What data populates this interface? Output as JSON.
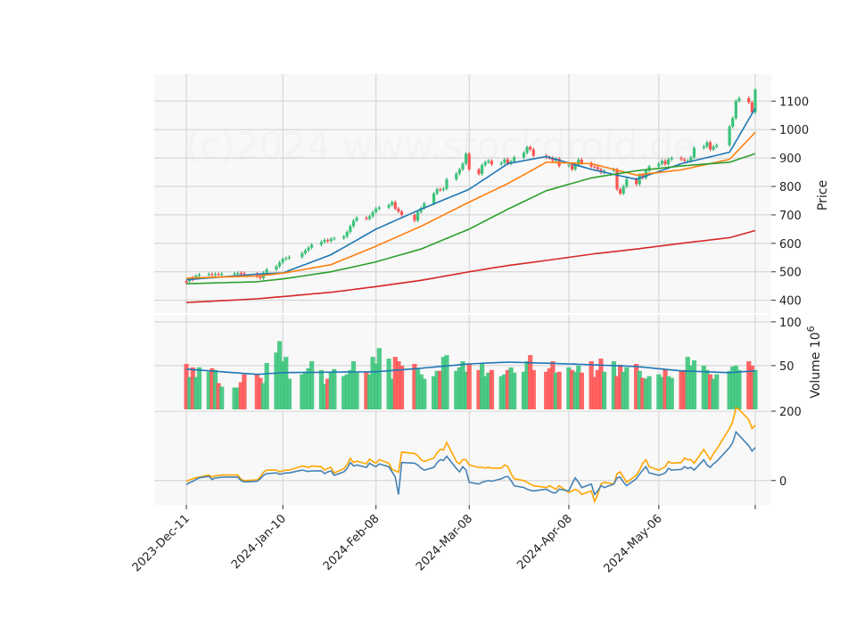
{
  "watermark": "(c)2024 www.stockdroid.de",
  "chart_data": [
    {
      "panel": "price",
      "type": "candlestick",
      "ylabel": "Price",
      "ylim": [
        355,
        1195
      ],
      "yticks": [
        400,
        500,
        600,
        700,
        800,
        900,
        1000,
        1100
      ],
      "grid": true,
      "x_dates": [
        "2023-12-11",
        "2023-12-12",
        "2023-12-13",
        "2023-12-14",
        "2023-12-15",
        "2023-12-18",
        "2023-12-19",
        "2023-12-20",
        "2023-12-21",
        "2023-12-22",
        "2023-12-26",
        "2023-12-27",
        "2023-12-28",
        "2023-12-29",
        "2024-01-02",
        "2024-01-03",
        "2024-01-04",
        "2024-01-05",
        "2024-01-08",
        "2024-01-09",
        "2024-01-10",
        "2024-01-11",
        "2024-01-12",
        "2024-01-16",
        "2024-01-17",
        "2024-01-18",
        "2024-01-19",
        "2024-01-22",
        "2024-01-23",
        "2024-01-24",
        "2024-01-25",
        "2024-01-26",
        "2024-01-29",
        "2024-01-30",
        "2024-01-31",
        "2024-02-01",
        "2024-02-02",
        "2024-02-05",
        "2024-02-06",
        "2024-02-07",
        "2024-02-08",
        "2024-02-09",
        "2024-02-12",
        "2024-02-13",
        "2024-02-14",
        "2024-02-15",
        "2024-02-16",
        "2024-02-20",
        "2024-02-21",
        "2024-02-22",
        "2024-02-23",
        "2024-02-26",
        "2024-02-27",
        "2024-02-28",
        "2024-02-29",
        "2024-03-01",
        "2024-03-04",
        "2024-03-05",
        "2024-03-06",
        "2024-03-07",
        "2024-03-08",
        "2024-03-11",
        "2024-03-12",
        "2024-03-13",
        "2024-03-14",
        "2024-03-15",
        "2024-03-18",
        "2024-03-19",
        "2024-03-20",
        "2024-03-21",
        "2024-03-22",
        "2024-03-25",
        "2024-03-26",
        "2024-03-27",
        "2024-03-28",
        "2024-04-01",
        "2024-04-02",
        "2024-04-03",
        "2024-04-04",
        "2024-04-05",
        "2024-04-08",
        "2024-04-09",
        "2024-04-10",
        "2024-04-11",
        "2024-04-12",
        "2024-04-15",
        "2024-04-16",
        "2024-04-17",
        "2024-04-18",
        "2024-04-19",
        "2024-04-22",
        "2024-04-23",
        "2024-04-24",
        "2024-04-25",
        "2024-04-26",
        "2024-04-29",
        "2024-04-30",
        "2024-05-01",
        "2024-05-02",
        "2024-05-03",
        "2024-05-06",
        "2024-05-07",
        "2024-05-08",
        "2024-05-09",
        "2024-05-10",
        "2024-05-13",
        "2024-05-14",
        "2024-05-15",
        "2024-05-16",
        "2024-05-17",
        "2024-05-20",
        "2024-05-21",
        "2024-05-22",
        "2024-05-23",
        "2024-05-24",
        "2024-05-28",
        "2024-05-29",
        "2024-05-30",
        "2024-05-31",
        "2024-06-03",
        "2024-06-04",
        "2024-06-05"
      ],
      "x_ticks": [
        "2023-Dec-11",
        "2024-Jan-10",
        "2024-Feb-08",
        "2024-Mar-08",
        "2024-Apr-08",
        "2024-May-06"
      ],
      "x_tick_dates": [
        "2023-12-11",
        "2024-01-10",
        "2024-02-08",
        "2024-03-08",
        "2024-04-08",
        "2024-05-06"
      ],
      "x_extra_tick_date": "2024-06-05",
      "x_range": [
        "2023-12-01",
        "2024-06-10"
      ],
      "close": [
        467,
        472,
        480,
        486,
        490,
        492,
        488,
        492,
        491,
        493,
        494,
        496,
        495,
        493,
        484,
        478,
        497,
        508,
        519,
        533,
        545,
        548,
        552,
        565,
        575,
        585,
        595,
        605,
        612,
        608,
        616,
        618,
        624,
        640,
        660,
        680,
        690,
        686,
        695,
        710,
        722,
        726,
        735,
        745,
        722,
        712,
        700,
        680,
        710,
        724,
        740,
        775,
        790,
        788,
        792,
        825,
        845,
        860,
        880,
        915,
        860,
        844,
        875,
        885,
        890,
        878,
        883,
        895,
        880,
        888,
        902,
        918,
        938,
        930,
        908,
        902,
        900,
        890,
        897,
        872,
        876,
        860,
        875,
        894,
        882,
        870,
        868,
        860,
        849,
        855,
        860,
        790,
        775,
        800,
        825,
        808,
        840,
        830,
        856,
        870,
        880,
        890,
        878,
        895,
        900,
        895,
        890,
        890,
        902,
        935,
        940,
        955,
        930,
        940,
        945,
        1010,
        1040,
        1100,
        1110,
        1095,
        1060,
        1140
      ],
      "up": [
        false,
        true,
        false,
        true,
        true,
        true,
        false,
        true,
        false,
        true,
        true,
        true,
        false,
        false,
        false,
        false,
        true,
        true,
        true,
        true,
        true,
        true,
        true,
        true,
        true,
        true,
        true,
        true,
        true,
        false,
        true,
        true,
        true,
        true,
        true,
        true,
        true,
        false,
        true,
        true,
        true,
        true,
        true,
        true,
        false,
        false,
        false,
        false,
        true,
        true,
        true,
        true,
        true,
        false,
        true,
        true,
        true,
        true,
        true,
        true,
        false,
        false,
        true,
        true,
        true,
        false,
        true,
        true,
        false,
        true,
        true,
        true,
        true,
        false,
        false,
        false,
        false,
        false,
        true,
        false,
        true,
        false,
        true,
        true,
        false,
        false,
        false,
        false,
        false,
        true,
        true,
        false,
        false,
        true,
        true,
        false,
        true,
        false,
        true,
        true,
        true,
        true,
        false,
        true,
        true,
        false,
        false,
        true,
        true,
        true,
        true,
        true,
        false,
        true,
        true,
        true,
        true,
        true,
        true,
        false,
        false,
        true
      ],
      "moving_averages": [
        {
          "color": "#1f77b4",
          "anchor_dates": [
            "2023-12-11",
            "2024-01-02",
            "2024-01-10",
            "2024-01-25",
            "2024-02-08",
            "2024-02-22",
            "2024-03-08",
            "2024-03-20",
            "2024-04-01",
            "2024-04-15",
            "2024-04-29",
            "2024-05-13",
            "2024-05-28",
            "2024-06-05"
          ],
          "values": [
            472,
            492,
            496,
            560,
            650,
            720,
            790,
            880,
            905,
            860,
            825,
            880,
            920,
            1075
          ]
        },
        {
          "color": "#ff7f0e",
          "anchor_dates": [
            "2023-12-11",
            "2024-01-02",
            "2024-01-10",
            "2024-01-25",
            "2024-02-08",
            "2024-02-22",
            "2024-03-08",
            "2024-03-20",
            "2024-04-01",
            "2024-04-15",
            "2024-04-29",
            "2024-05-13",
            "2024-05-28",
            "2024-06-05"
          ],
          "values": [
            478,
            485,
            495,
            525,
            590,
            660,
            745,
            810,
            885,
            880,
            840,
            858,
            895,
            990
          ]
        },
        {
          "color": "#2ca02c",
          "anchor_dates": [
            "2023-12-11",
            "2024-01-02",
            "2024-01-10",
            "2024-01-25",
            "2024-02-08",
            "2024-02-22",
            "2024-03-08",
            "2024-03-20",
            "2024-04-01",
            "2024-04-15",
            "2024-04-29",
            "2024-05-13",
            "2024-05-28",
            "2024-06-05"
          ],
          "values": [
            458,
            465,
            475,
            500,
            535,
            580,
            650,
            720,
            785,
            830,
            855,
            872,
            885,
            915
          ]
        },
        {
          "color": "#d62728",
          "anchor_dates": [
            "2023-12-11",
            "2024-01-02",
            "2024-01-10",
            "2024-01-25",
            "2024-02-08",
            "2024-02-22",
            "2024-03-08",
            "2024-03-20",
            "2024-04-01",
            "2024-04-15",
            "2024-04-29",
            "2024-05-13",
            "2024-05-28",
            "2024-06-05"
          ],
          "values": [
            392,
            405,
            413,
            428,
            448,
            470,
            500,
            522,
            540,
            562,
            580,
            600,
            620,
            645
          ]
        }
      ]
    },
    {
      "panel": "volume",
      "type": "bar",
      "ylabel": "Volume  10^6",
      "ylim": [
        0,
        108
      ],
      "yticks": [
        50,
        100
      ],
      "grid": true,
      "values": [
        52,
        37,
        48,
        37,
        48,
        43,
        47,
        45,
        30,
        26,
        25,
        25,
        31,
        40,
        40,
        36,
        30,
        53,
        65,
        78,
        55,
        60,
        35,
        40,
        43,
        47,
        55,
        45,
        29,
        35,
        42,
        46,
        38,
        40,
        45,
        55,
        42,
        43,
        40,
        60,
        52,
        70,
        58,
        35,
        60,
        55,
        50,
        52,
        46,
        40,
        35,
        38,
        44,
        44,
        60,
        62,
        44,
        48,
        55,
        43,
        52,
        45,
        52,
        38,
        42,
        45,
        38,
        40,
        45,
        48,
        42,
        43,
        55,
        62,
        45,
        43,
        47,
        55,
        42,
        43,
        48,
        45,
        43,
        50,
        42,
        55,
        37,
        45,
        58,
        43,
        55,
        38,
        51,
        43,
        48,
        52,
        44,
        36,
        35,
        38,
        40,
        37,
        46,
        38,
        36,
        44,
        45,
        60,
        50,
        56,
        50,
        45,
        40,
        35,
        40,
        44,
        49,
        50,
        45,
        55,
        50,
        45
      ],
      "average_line": {
        "color": "#1f77b4",
        "anchor_dates": [
          "2023-12-11",
          "2024-01-02",
          "2024-01-10",
          "2024-02-08",
          "2024-02-22",
          "2024-03-08",
          "2024-03-20",
          "2024-04-08",
          "2024-04-29",
          "2024-05-13",
          "2024-05-28",
          "2024-06-05"
        ],
        "values": [
          46,
          40,
          42,
          43,
          47,
          52,
          54,
          52,
          49,
          44,
          42,
          44
        ]
      }
    },
    {
      "panel": "oscillator",
      "type": "line",
      "ylim": [
        -70,
        200
      ],
      "yticks": [
        0,
        200
      ],
      "grid": true,
      "series": [
        {
          "color": "#ffa500",
          "values": [
            -2,
            2,
            5,
            8,
            10,
            16,
            10,
            14,
            14,
            16,
            16,
            16,
            4,
            0,
            2,
            10,
            24,
            30,
            30,
            25,
            28,
            30,
            30,
            42,
            40,
            38,
            42,
            40,
            30,
            35,
            38,
            22,
            34,
            46,
            64,
            52,
            56,
            48,
            62,
            55,
            50,
            60,
            50,
            32,
            28,
            24,
            82,
            78,
            72,
            60,
            55,
            65,
            80,
            90,
            88,
            110,
            55,
            48,
            60,
            60,
            45,
            38,
            38,
            36,
            38,
            36,
            36,
            45,
            40,
            20,
            5,
            0,
            -5,
            -10,
            -15,
            -20,
            -15,
            -20,
            -25,
            -15,
            -35,
            -30,
            -25,
            -30,
            -40,
            -30,
            -60,
            -40,
            -10,
            -5,
            -10,
            20,
            25,
            10,
            -5,
            15,
            30,
            50,
            60,
            40,
            30,
            35,
            40,
            55,
            50,
            52,
            65,
            60,
            60,
            50,
            90,
            75,
            60,
            78,
            90,
            150,
            170,
            210,
            205,
            175,
            150,
            160
          ]
        },
        {
          "color": "#4682b4",
          "values": [
            -12,
            -6,
            -2,
            3,
            8,
            12,
            3,
            8,
            8,
            10,
            10,
            10,
            0,
            -4,
            -2,
            5,
            15,
            20,
            22,
            18,
            20,
            22,
            22,
            30,
            28,
            26,
            28,
            28,
            20,
            25,
            28,
            15,
            25,
            35,
            52,
            42,
            45,
            38,
            50,
            44,
            40,
            48,
            40,
            25,
            10,
            -40,
            52,
            50,
            45,
            36,
            30,
            38,
            52,
            60,
            58,
            70,
            35,
            25,
            40,
            30,
            -5,
            -10,
            -5,
            -2,
            0,
            -2,
            5,
            10,
            12,
            0,
            -15,
            -20,
            -25,
            -28,
            -30,
            -25,
            -30,
            -35,
            -35,
            -25,
            -30,
            -10,
            8,
            -5,
            -20,
            -10,
            -40,
            -30,
            -15,
            -20,
            -10,
            8,
            10,
            -5,
            -15,
            5,
            18,
            30,
            40,
            22,
            15,
            18,
            22,
            35,
            30,
            32,
            40,
            35,
            38,
            30,
            60,
            45,
            38,
            48,
            55,
            95,
            110,
            140,
            130,
            100,
            85,
            95
          ]
        }
      ]
    }
  ]
}
